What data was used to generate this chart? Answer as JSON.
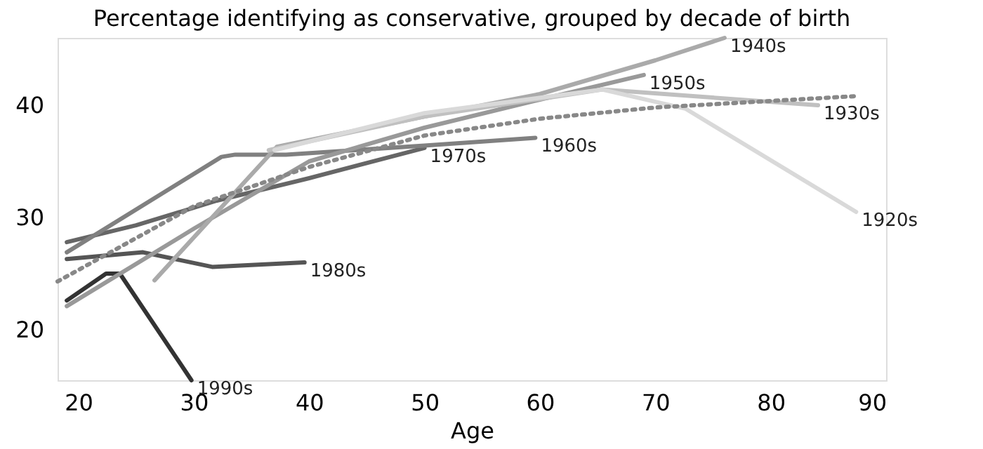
{
  "chart_data": {
    "type": "line",
    "title": "Percentage identifying as conservative, grouped by decade of birth",
    "xlabel": "Age",
    "xlim": [
      18.2,
      90
    ],
    "ylim": [
      15.5,
      46
    ],
    "xticks": [
      20,
      30,
      40,
      50,
      60,
      70,
      80,
      90
    ],
    "yticks": [
      20,
      30,
      40
    ],
    "grid": false,
    "marker": "none",
    "line_style": "solid",
    "series": [
      {
        "name": "1990s",
        "color": "#333333",
        "x": [
          19,
          22.4,
          23.6,
          29.8
        ],
        "values": [
          22.6,
          25,
          25,
          15.5
        ]
      },
      {
        "name": "1980s",
        "color": "#555555",
        "x": [
          19,
          25.6,
          31.6,
          39.6
        ],
        "values": [
          26.3,
          26.9,
          25.6,
          26
        ]
      },
      {
        "name": "1970s",
        "color": "#666666",
        "x": [
          19,
          25,
          32,
          40,
          50
        ],
        "values": [
          27.8,
          29.3,
          31.5,
          33.5,
          36.2
        ]
      },
      {
        "name": "1960s",
        "color": "#808080",
        "x": [
          19,
          32.4,
          33.6,
          38,
          50,
          59.6
        ],
        "values": [
          26.9,
          35.4,
          35.6,
          35.6,
          36.4,
          37.1
        ]
      },
      {
        "name": "1950s",
        "color": "#999999",
        "x": [
          19,
          30,
          40,
          50,
          60,
          69
        ],
        "values": [
          22.1,
          29,
          35,
          38,
          40.5,
          42.7
        ]
      },
      {
        "name": "1940s",
        "color": "#aaaaaa",
        "x": [
          26.6,
          37.2,
          50,
          60,
          70,
          76
        ],
        "values": [
          24.4,
          36.3,
          39,
          41,
          44,
          46
        ]
      },
      {
        "name": "1930s",
        "color": "#c0c0c0",
        "x": [
          36.5,
          50,
          65.4,
          84.1
        ],
        "values": [
          36,
          39,
          41.4,
          40
        ]
      },
      {
        "name": "1920s",
        "color": "#d9d9d9",
        "x": [
          37,
          50,
          65.4,
          72.6,
          87.4
        ],
        "values": [
          36,
          39.3,
          41.4,
          39.7,
          30.5
        ]
      },
      {
        "type": "line",
        "line_style": "dotted",
        "color": "#888888",
        "x": [
          18.2,
          30,
          40,
          50,
          60,
          70,
          87.2
        ],
        "values": [
          24.3,
          31,
          34.5,
          37.3,
          38.8,
          39.8,
          40.8
        ]
      }
    ]
  }
}
